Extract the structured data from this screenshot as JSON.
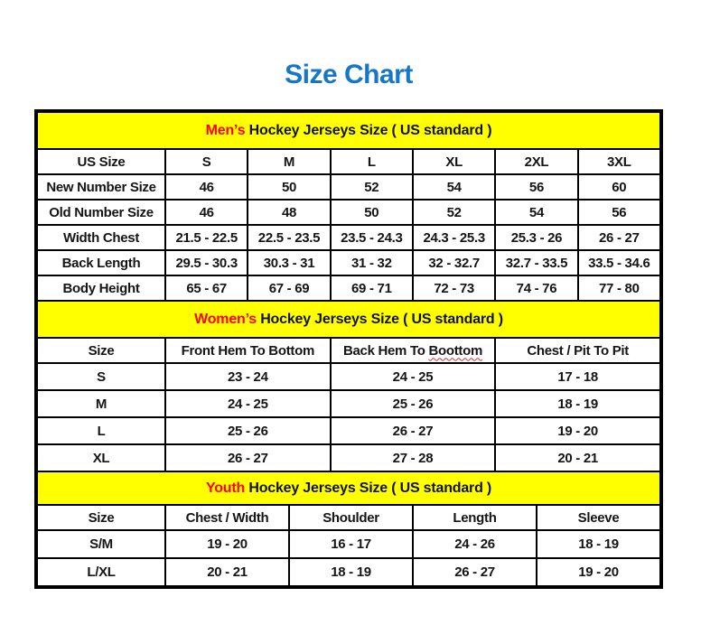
{
  "page": {
    "title": "Size Chart"
  },
  "colors": {
    "title_blue": "#1577C5",
    "banner_yellow": "#FFFF00",
    "accent_red": "#FF0000",
    "border_black": "#000000"
  },
  "tables": [
    {
      "id": "mens",
      "banner": {
        "accent": "Men’s",
        "rest": " Hockey Jerseys Size ( US standard )"
      },
      "columns": [
        "US Size",
        "S",
        "M",
        "L",
        "XL",
        "2XL",
        "3XL"
      ],
      "rows": [
        [
          "New Number Size",
          "46",
          "50",
          "52",
          "54",
          "56",
          "60"
        ],
        [
          "Old Number Size",
          "46",
          "48",
          "50",
          "52",
          "54",
          "56"
        ],
        [
          "Width Chest",
          "21.5 - 22.5",
          "22.5 - 23.5",
          "23.5 - 24.3",
          "24.3 - 25.3",
          "25.3 - 26",
          "26 - 27"
        ],
        [
          "Back Length",
          "29.5 - 30.3",
          "30.3 - 31",
          "31 - 32",
          "32 - 32.7",
          "32.7 - 33.5",
          "33.5 - 34.6"
        ],
        [
          "Body Height",
          "65 - 67",
          "67 - 69",
          "69 - 71",
          "72 - 73",
          "74 - 76",
          "77 - 80"
        ]
      ]
    },
    {
      "id": "womens",
      "banner": {
        "accent": "Women’s",
        "rest": " Hockey Jerseys Size ( US standard )"
      },
      "columns": [
        "Size",
        "Front Hem To Bottom",
        {
          "pre": "Back Hem To ",
          "wavy": "Boottom"
        },
        "Chest / Pit To Pit"
      ],
      "rows": [
        [
          "S",
          "23 - 24",
          "24 - 25",
          "17 - 18"
        ],
        [
          "M",
          "24 - 25",
          "25 - 26",
          "18 - 19"
        ],
        [
          "L",
          "25 - 26",
          "26 - 27",
          "19 - 20"
        ],
        [
          "XL",
          "26 - 27",
          "27 - 28",
          "20 - 21"
        ]
      ]
    },
    {
      "id": "youth",
      "banner": {
        "accent": "Youth",
        "rest": " Hockey Jerseys Size ( US standard )"
      },
      "columns": [
        "Size",
        "Chest / Width",
        "Shoulder",
        "Length",
        "Sleeve"
      ],
      "rows": [
        [
          "S/M",
          "19 - 20",
          "16 - 17",
          "24 - 26",
          "18 - 19"
        ],
        [
          "L/XL",
          "20 - 21",
          "18 - 19",
          "26 - 27",
          "19 - 20"
        ]
      ]
    }
  ]
}
